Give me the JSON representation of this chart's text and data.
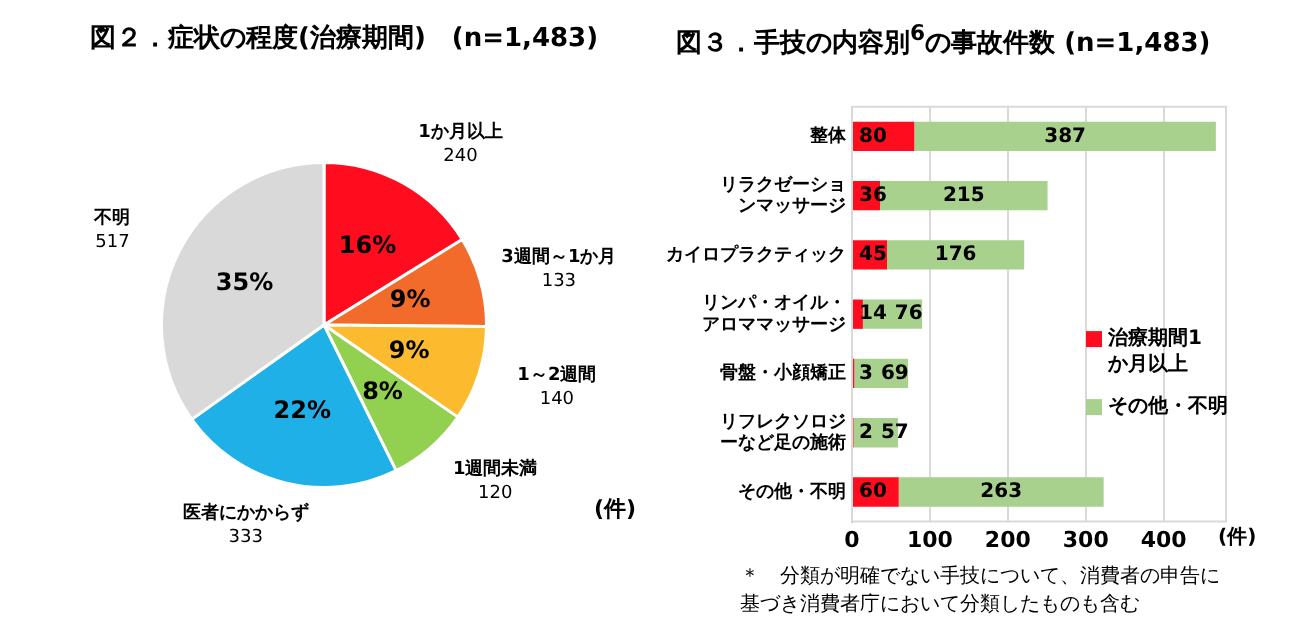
{
  "chart_data": [
    {
      "type": "pie",
      "title": "図２．症状の程度(治療期間)　(n=1,483)",
      "categories": [
        "1か月以上",
        "3週間～1か月",
        "1～2週間",
        "1週間未満",
        "医者にかからず",
        "不明"
      ],
      "values": [
        240,
        133,
        140,
        120,
        333,
        517
      ],
      "colors": [
        "#ff0d1f",
        "#f26b2a",
        "#fcbb2f",
        "#92d050",
        "#1fb0e8",
        "#d9d9d9"
      ],
      "data_labels": true,
      "legend": false,
      "annotations": [
        "(件)",
        {
          "text": "16%",
          "x": "1か月以上"
        },
        {
          "text": "9%",
          "x": "3週間～1か月"
        },
        {
          "text": "9%",
          "x": "1～2週間"
        },
        {
          "text": "8%",
          "x": "1週間未満"
        },
        {
          "text": "22%",
          "x": "医者にかからず"
        },
        {
          "text": "35%",
          "x": "不明"
        }
      ]
    },
    {
      "type": "bar",
      "orientation": "horizontal",
      "stacked": true,
      "title": "図３．手技の内容別$^{6}$の事故件数 (n=1,483)",
      "xlabel": "(件)",
      "categories": [
        "整体",
        "リラクゼーションマッサージ",
        "カイロプラクティック",
        "リンパ・オイル・アロママッサージ",
        "骨盤・小顔矯正",
        "リフレクソロジーなど足の施術",
        "その他・不明"
      ],
      "series": [
        {
          "name": "治療期間1か月以上",
          "color": "#ff0d1f",
          "values": [
            80,
            36,
            45,
            14,
            3,
            2,
            60
          ]
        },
        {
          "name": "その他・不明",
          "color": "#a9d18e",
          "values": [
            387,
            215,
            176,
            76,
            69,
            57,
            263
          ]
        }
      ],
      "xlim": [
        0,
        480
      ],
      "xticks": [
        0,
        100,
        200,
        300,
        400
      ],
      "grid": "x",
      "legend": "right",
      "data_labels": true,
      "annotations": [
        "＊　分類が明確でない手技について、消費者の申告に基づき消費者庁において分類したものも含む"
      ]
    }
  ]
}
